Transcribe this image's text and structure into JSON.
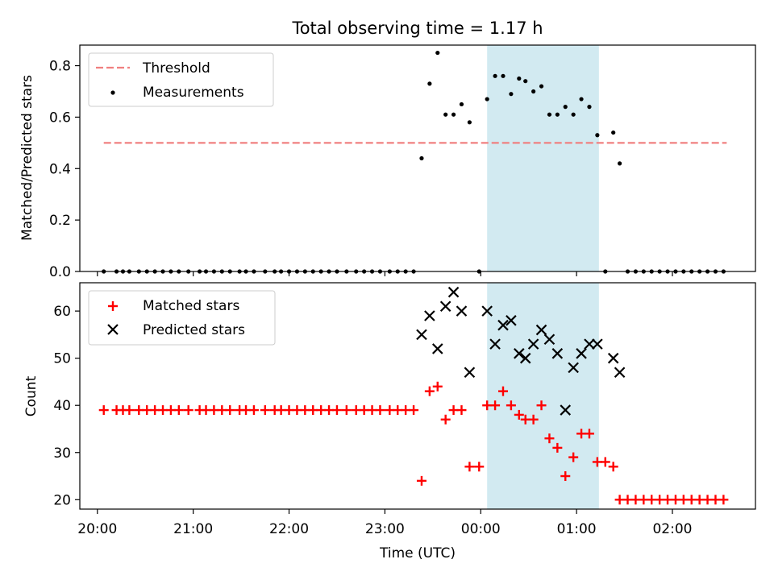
{
  "figure": {
    "title": "Total observing time = 1.17 h"
  },
  "chart_data": [
    {
      "type": "scatter",
      "panel": "top",
      "ylabel": "Matched/Predicted stars",
      "xlabel": "",
      "xlim": [
        "19:49",
        "02:52"
      ],
      "ylim": [
        0,
        0.88
      ],
      "yticks": [
        "0.0",
        "0.2",
        "0.4",
        "0.6",
        "0.8"
      ],
      "grid": false,
      "legend_position": "top-left",
      "highlight_span": {
        "x_start": "00:04",
        "x_end": "01:14",
        "color": "#add8e6"
      },
      "threshold": {
        "name": "Threshold",
        "value": 0.5,
        "x_start": "20:04",
        "x_end": "02:34",
        "color": "#f08080",
        "style": "dashed"
      },
      "series": [
        {
          "name": "Measurements",
          "color": "#000000",
          "marker": "dot",
          "points": [
            [
              "20:04",
              0
            ],
            [
              "20:12",
              0
            ],
            [
              "20:16",
              0
            ],
            [
              "20:20",
              0
            ],
            [
              "20:26",
              0
            ],
            [
              "20:31",
              0
            ],
            [
              "20:36",
              0
            ],
            [
              "20:41",
              0
            ],
            [
              "20:46",
              0
            ],
            [
              "20:51",
              0
            ],
            [
              "20:57",
              0
            ],
            [
              "21:04",
              0
            ],
            [
              "21:08",
              0
            ],
            [
              "21:13",
              0
            ],
            [
              "21:18",
              0
            ],
            [
              "21:23",
              0
            ],
            [
              "21:29",
              0
            ],
            [
              "21:33",
              0
            ],
            [
              "21:38",
              0
            ],
            [
              "21:45",
              0
            ],
            [
              "21:51",
              0
            ],
            [
              "21:55",
              0
            ],
            [
              "22:00",
              0
            ],
            [
              "22:05",
              0
            ],
            [
              "22:10",
              0
            ],
            [
              "22:15",
              0
            ],
            [
              "22:20",
              0
            ],
            [
              "22:25",
              0
            ],
            [
              "22:30",
              0
            ],
            [
              "22:36",
              0
            ],
            [
              "22:42",
              0
            ],
            [
              "22:47",
              0
            ],
            [
              "22:52",
              0
            ],
            [
              "22:57",
              0
            ],
            [
              "23:03",
              0
            ],
            [
              "23:08",
              0
            ],
            [
              "23:13",
              0
            ],
            [
              "23:18",
              0
            ],
            [
              "23:23",
              0.44
            ],
            [
              "23:28",
              0.73
            ],
            [
              "23:33",
              0.85
            ],
            [
              "23:38",
              0.61
            ],
            [
              "23:43",
              0.61
            ],
            [
              "23:48",
              0.65
            ],
            [
              "23:53",
              0.58
            ],
            [
              "23:59",
              0
            ],
            [
              "00:04",
              0.67
            ],
            [
              "00:09",
              0.76
            ],
            [
              "00:14",
              0.76
            ],
            [
              "00:19",
              0.69
            ],
            [
              "00:24",
              0.75
            ],
            [
              "00:28",
              0.74
            ],
            [
              "00:33",
              0.7
            ],
            [
              "00:38",
              0.72
            ],
            [
              "00:43",
              0.61
            ],
            [
              "00:48",
              0.61
            ],
            [
              "00:53",
              0.64
            ],
            [
              "00:58",
              0.61
            ],
            [
              "01:03",
              0.67
            ],
            [
              "01:08",
              0.64
            ],
            [
              "01:13",
              0.53
            ],
            [
              "01:18",
              0
            ],
            [
              "01:23",
              0.54
            ],
            [
              "01:27",
              0.42
            ],
            [
              "01:32",
              0
            ],
            [
              "01:37",
              0
            ],
            [
              "01:42",
              0
            ],
            [
              "01:47",
              0
            ],
            [
              "01:52",
              0
            ],
            [
              "01:57",
              0
            ],
            [
              "02:02",
              0
            ],
            [
              "02:07",
              0
            ],
            [
              "02:12",
              0
            ],
            [
              "02:17",
              0
            ],
            [
              "02:22",
              0
            ],
            [
              "02:27",
              0
            ],
            [
              "02:32",
              0
            ]
          ]
        }
      ]
    },
    {
      "type": "scatter",
      "panel": "bottom",
      "ylabel": "Count",
      "xlabel": "Time (UTC)",
      "xlim": [
        "19:49",
        "02:52"
      ],
      "ylim": [
        18,
        66
      ],
      "xticks": [
        "20:00",
        "21:00",
        "22:00",
        "23:00",
        "00:00",
        "01:00",
        "02:00"
      ],
      "yticks": [
        "20",
        "30",
        "40",
        "50",
        "60"
      ],
      "grid": false,
      "legend_position": "top-left",
      "highlight_span": {
        "x_start": "00:04",
        "x_end": "01:14",
        "color": "#add8e6"
      },
      "series": [
        {
          "name": "Matched stars",
          "color": "#ff0000",
          "marker": "plus",
          "points": [
            [
              "20:04",
              39
            ],
            [
              "20:12",
              39
            ],
            [
              "20:16",
              39
            ],
            [
              "20:20",
              39
            ],
            [
              "20:26",
              39
            ],
            [
              "20:31",
              39
            ],
            [
              "20:36",
              39
            ],
            [
              "20:41",
              39
            ],
            [
              "20:46",
              39
            ],
            [
              "20:51",
              39
            ],
            [
              "20:57",
              39
            ],
            [
              "21:04",
              39
            ],
            [
              "21:08",
              39
            ],
            [
              "21:13",
              39
            ],
            [
              "21:18",
              39
            ],
            [
              "21:23",
              39
            ],
            [
              "21:29",
              39
            ],
            [
              "21:33",
              39
            ],
            [
              "21:38",
              39
            ],
            [
              "21:45",
              39
            ],
            [
              "21:51",
              39
            ],
            [
              "21:55",
              39
            ],
            [
              "22:00",
              39
            ],
            [
              "22:05",
              39
            ],
            [
              "22:10",
              39
            ],
            [
              "22:15",
              39
            ],
            [
              "22:20",
              39
            ],
            [
              "22:25",
              39
            ],
            [
              "22:30",
              39
            ],
            [
              "22:36",
              39
            ],
            [
              "22:42",
              39
            ],
            [
              "22:47",
              39
            ],
            [
              "22:52",
              39
            ],
            [
              "22:57",
              39
            ],
            [
              "23:03",
              39
            ],
            [
              "23:08",
              39
            ],
            [
              "23:13",
              39
            ],
            [
              "23:18",
              39
            ],
            [
              "23:23",
              24
            ],
            [
              "23:28",
              43
            ],
            [
              "23:33",
              44
            ],
            [
              "23:38",
              37
            ],
            [
              "23:43",
              39
            ],
            [
              "23:48",
              39
            ],
            [
              "23:53",
              27
            ],
            [
              "23:59",
              27
            ],
            [
              "00:04",
              40
            ],
            [
              "00:09",
              40
            ],
            [
              "00:14",
              43
            ],
            [
              "00:19",
              40
            ],
            [
              "00:24",
              38
            ],
            [
              "00:28",
              37
            ],
            [
              "00:33",
              37
            ],
            [
              "00:38",
              40
            ],
            [
              "00:43",
              33
            ],
            [
              "00:48",
              31
            ],
            [
              "00:53",
              25
            ],
            [
              "00:58",
              29
            ],
            [
              "01:03",
              34
            ],
            [
              "01:08",
              34
            ],
            [
              "01:13",
              28
            ],
            [
              "01:18",
              28
            ],
            [
              "01:23",
              27
            ],
            [
              "01:27",
              20
            ],
            [
              "01:32",
              20
            ],
            [
              "01:37",
              20
            ],
            [
              "01:42",
              20
            ],
            [
              "01:47",
              20
            ],
            [
              "01:52",
              20
            ],
            [
              "01:57",
              20
            ],
            [
              "02:02",
              20
            ],
            [
              "02:07",
              20
            ],
            [
              "02:12",
              20
            ],
            [
              "02:17",
              20
            ],
            [
              "02:22",
              20
            ],
            [
              "02:27",
              20
            ],
            [
              "02:32",
              20
            ]
          ]
        },
        {
          "name": "Predicted stars",
          "color": "#000000",
          "marker": "x",
          "points": [
            [
              "23:23",
              55
            ],
            [
              "23:28",
              59
            ],
            [
              "23:33",
              52
            ],
            [
              "23:38",
              61
            ],
            [
              "23:43",
              64
            ],
            [
              "23:48",
              60
            ],
            [
              "23:53",
              47
            ],
            [
              "00:04",
              60
            ],
            [
              "00:09",
              53
            ],
            [
              "00:14",
              57
            ],
            [
              "00:19",
              58
            ],
            [
              "00:24",
              51
            ],
            [
              "00:28",
              50
            ],
            [
              "00:33",
              53
            ],
            [
              "00:38",
              56
            ],
            [
              "00:43",
              54
            ],
            [
              "00:48",
              51
            ],
            [
              "00:53",
              39
            ],
            [
              "00:58",
              48
            ],
            [
              "01:03",
              51
            ],
            [
              "01:08",
              53
            ],
            [
              "01:13",
              53
            ],
            [
              "01:23",
              50
            ],
            [
              "01:27",
              47
            ]
          ]
        }
      ]
    }
  ]
}
